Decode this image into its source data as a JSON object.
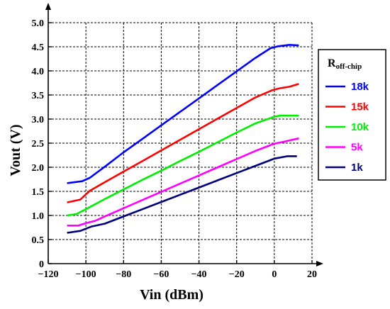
{
  "chart_data": {
    "type": "line",
    "title": "",
    "xlabel": "Vin (dBm)",
    "ylabel": "Vout (V)",
    "xlim": [
      -120,
      20
    ],
    "ylim": [
      0,
      5.0
    ],
    "x_ticks": [
      "−120",
      "−100",
      "−80",
      "−60",
      "−40",
      "−20",
      "0",
      "20"
    ],
    "x_tick_values": [
      -120,
      -100,
      -80,
      -60,
      -40,
      -20,
      0,
      20
    ],
    "y_ticks": [
      "0",
      "0.5",
      "1.0",
      "1.5",
      "2.0",
      "2.5",
      "3.0",
      "3.5",
      "4.0",
      "4.5",
      "5.0"
    ],
    "y_tick_values": [
      0,
      0.5,
      1.0,
      1.5,
      2.0,
      2.5,
      3.0,
      3.5,
      4.0,
      4.5,
      5.0
    ],
    "grid": true,
    "legend": {
      "title_main": "R",
      "title_sub": "off-chip",
      "placement": "right"
    },
    "series": [
      {
        "name": "18k",
        "color": "#0000ff",
        "x": [
          -110,
          -102,
          -98,
          -90,
          -80,
          -70,
          -60,
          -50,
          -40,
          -30,
          -20,
          -10,
          -2,
          2,
          8,
          13
        ],
        "y": [
          1.67,
          1.71,
          1.78,
          2.01,
          2.31,
          2.59,
          2.87,
          3.15,
          3.43,
          3.71,
          3.99,
          4.27,
          4.47,
          4.51,
          4.54,
          4.53
        ]
      },
      {
        "name": "15k",
        "color": "#ff0000",
        "x": [
          -110,
          -103,
          -98,
          -90,
          -80,
          -70,
          -60,
          -50,
          -40,
          -30,
          -20,
          -10,
          -1,
          3,
          8,
          13
        ],
        "y": [
          1.27,
          1.33,
          1.51,
          1.69,
          1.91,
          2.13,
          2.35,
          2.57,
          2.79,
          3.01,
          3.23,
          3.45,
          3.6,
          3.64,
          3.67,
          3.73
        ]
      },
      {
        "name": "10k",
        "color": "#00ee00",
        "x": [
          -110,
          -105,
          -100,
          -90,
          -80,
          -70,
          -60,
          -50,
          -40,
          -30,
          -20,
          -10,
          0,
          3,
          8,
          13
        ],
        "y": [
          1.0,
          1.03,
          1.13,
          1.34,
          1.54,
          1.74,
          1.93,
          2.13,
          2.32,
          2.52,
          2.72,
          2.91,
          3.05,
          3.07,
          3.07,
          3.07
        ]
      },
      {
        "name": "5k",
        "color": "#ff00ff",
        "x": [
          -110,
          -104,
          -100,
          -95,
          -90,
          -80,
          -70,
          -60,
          -50,
          -40,
          -30,
          -20,
          -10,
          0,
          5,
          13
        ],
        "y": [
          0.79,
          0.79,
          0.84,
          0.89,
          0.98,
          1.15,
          1.32,
          1.49,
          1.66,
          1.83,
          2.0,
          2.17,
          2.34,
          2.49,
          2.53,
          2.6
        ]
      },
      {
        "name": "1k",
        "color": "#00007a",
        "x": [
          -110,
          -103,
          -97,
          -90,
          -80,
          -70,
          -60,
          -50,
          -40,
          -30,
          -20,
          -10,
          0,
          7,
          12
        ],
        "y": [
          0.64,
          0.68,
          0.77,
          0.83,
          0.98,
          1.13,
          1.28,
          1.43,
          1.58,
          1.73,
          1.88,
          2.03,
          2.18,
          2.23,
          2.23
        ]
      }
    ]
  }
}
